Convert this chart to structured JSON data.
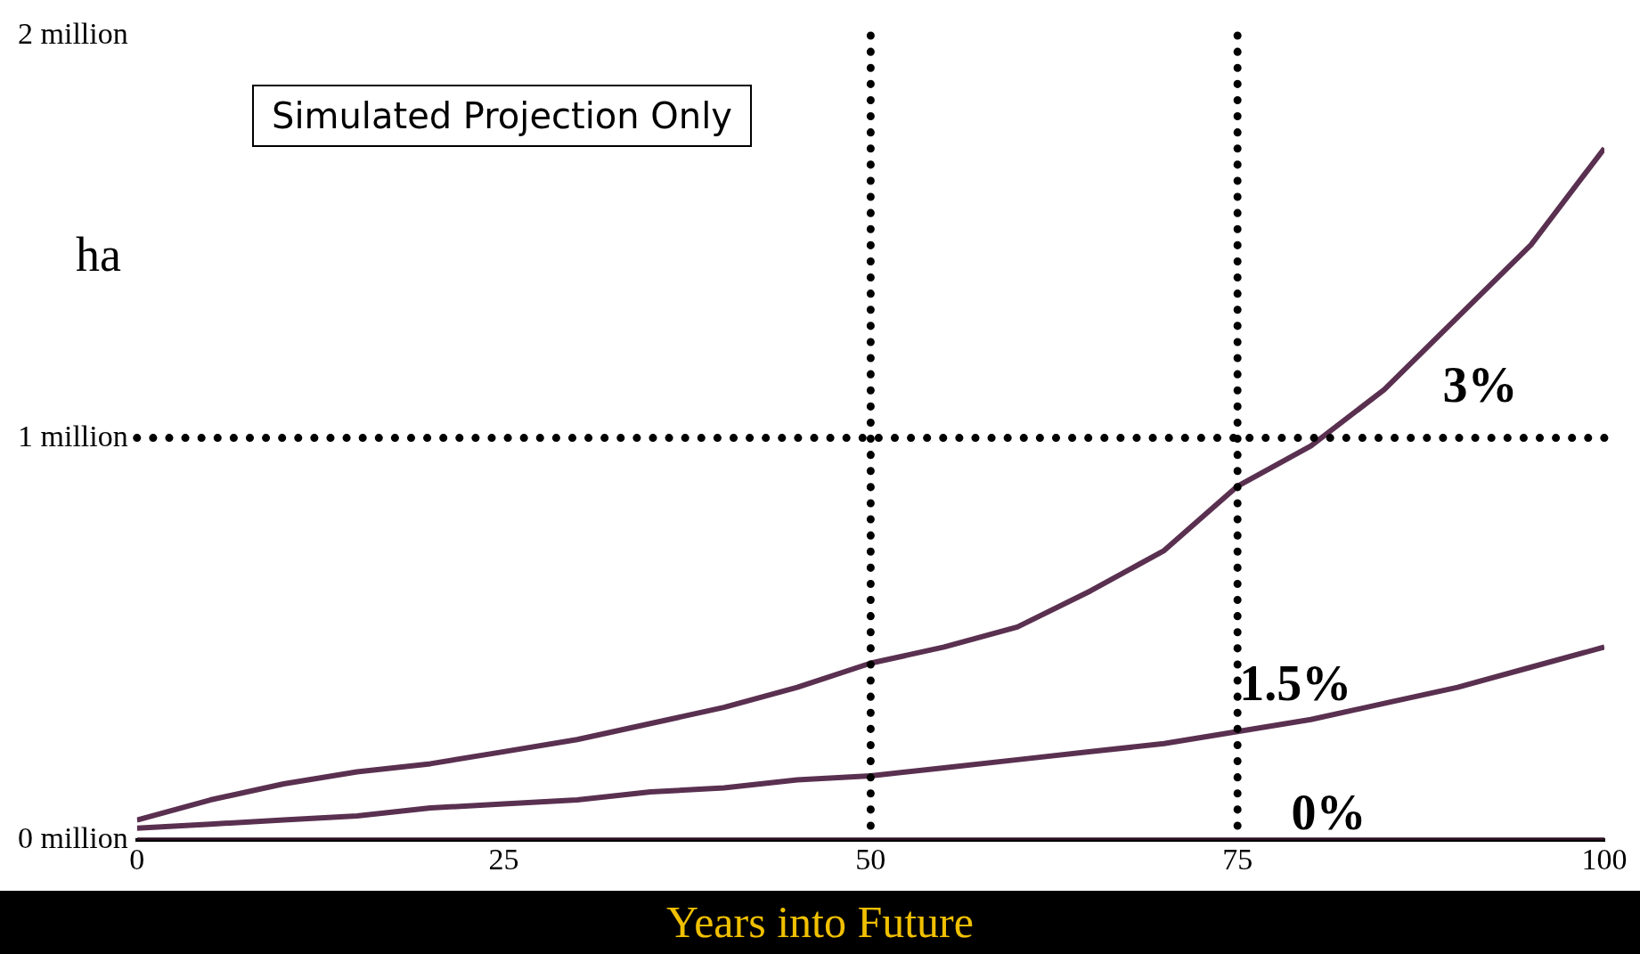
{
  "chart_data": {
    "type": "line",
    "xlabel": "Years into Future",
    "ylabel": "ha",
    "annotations": [
      "Simulated Projection Only"
    ],
    "x": [
      0,
      5,
      10,
      15,
      20,
      25,
      30,
      35,
      40,
      45,
      50,
      55,
      60,
      65,
      70,
      75,
      80,
      85,
      90,
      95,
      100
    ],
    "series": [
      {
        "name": "3%",
        "color": "#5a3050",
        "values": [
          0.05,
          0.1,
          0.14,
          0.17,
          0.19,
          0.22,
          0.25,
          0.29,
          0.33,
          0.38,
          0.44,
          0.48,
          0.53,
          0.62,
          0.72,
          0.88,
          0.98,
          1.12,
          1.3,
          1.48,
          1.72
        ]
      },
      {
        "name": "1.5%",
        "color": "#5a3050",
        "values": [
          0.03,
          0.04,
          0.05,
          0.06,
          0.08,
          0.09,
          0.1,
          0.12,
          0.13,
          0.15,
          0.16,
          0.18,
          0.2,
          0.22,
          0.24,
          0.27,
          0.3,
          0.34,
          0.38,
          0.43,
          0.48
        ]
      },
      {
        "name": "0%",
        "color": "#2a1020",
        "values": [
          0,
          0,
          0,
          0,
          0,
          0,
          0,
          0,
          0,
          0,
          0,
          0,
          0,
          0,
          0,
          0,
          0,
          0,
          0,
          0,
          0
        ]
      }
    ],
    "xlim": [
      0,
      100
    ],
    "xticks": [
      0,
      25,
      50,
      75,
      100
    ],
    "ylim": [
      0,
      2
    ],
    "yticks": [
      {
        "value": 0,
        "label": "0 million"
      },
      {
        "value": 1,
        "label": "1 million"
      },
      {
        "value": 2,
        "label": "2 million"
      }
    ],
    "ref_lines": [
      {
        "axis": "y",
        "value": 1,
        "line_style": "dotted"
      },
      {
        "axis": "x",
        "value": 50,
        "line_style": "dotted"
      },
      {
        "axis": "x",
        "value": 75,
        "line_style": "dotted"
      }
    ],
    "grid": false,
    "legend": false,
    "marker": "none",
    "line_style": "solid"
  }
}
